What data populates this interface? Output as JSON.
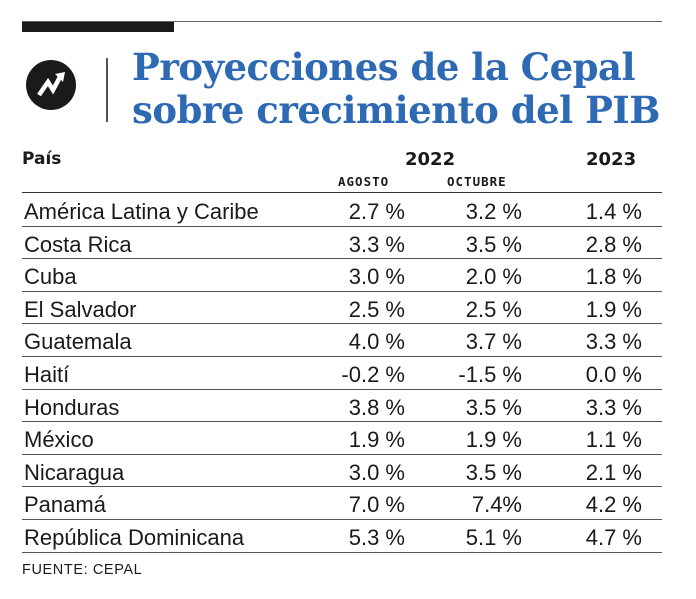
{
  "title": {
    "line1": "Proyecciones de la Cepal",
    "line2": "sobre crecimiento del PIB"
  },
  "colors": {
    "title": "#2e6ab3",
    "text": "#1a1a1a",
    "logo_bg": "#1a1a1a"
  },
  "icons": {
    "logo": "trend-arrow-icon"
  },
  "headers": {
    "country": "País",
    "year_2022": "2022",
    "year_2023": "2023",
    "agosto": "AGOSTO",
    "octubre": "OCTUBRE"
  },
  "chart_data": {
    "type": "table",
    "title": "Proyecciones de la Cepal sobre crecimiento del PIB",
    "columns": [
      "País",
      "2022 AGOSTO",
      "2022 OCTUBRE",
      "2023"
    ],
    "rows": [
      {
        "country": "América Latina y Caribe",
        "agosto": "2.7 %",
        "octubre": "3.2 %",
        "y2023": "1.4 %"
      },
      {
        "country": "Costa Rica",
        "agosto": "3.3 %",
        "octubre": "3.5 %",
        "y2023": "2.8 %"
      },
      {
        "country": "Cuba",
        "agosto": "3.0 %",
        "octubre": "2.0 %",
        "y2023": "1.8 %"
      },
      {
        "country": "El Salvador",
        "agosto": "2.5 %",
        "octubre": "2.5 %",
        "y2023": "1.9 %"
      },
      {
        "country": "Guatemala",
        "agosto": "4.0 %",
        "octubre": "3.7 %",
        "y2023": "3.3 %"
      },
      {
        "country": "Haití",
        "agosto": "-0.2 %",
        "octubre": "-1.5 %",
        "y2023": "0.0 %"
      },
      {
        "country": "Honduras",
        "agosto": "3.8 %",
        "octubre": "3.5 %",
        "y2023": "3.3 %"
      },
      {
        "country": "México",
        "agosto": "1.9 %",
        "octubre": "1.9 %",
        "y2023": "1.1 %"
      },
      {
        "country": "Nicaragua",
        "agosto": "3.0 %",
        "octubre": "3.5 %",
        "y2023": "2.1 %"
      },
      {
        "country": "Panamá",
        "agosto": "7.0 %",
        "octubre": "7.4%",
        "y2023": "4.2 %"
      },
      {
        "country": "República Dominicana",
        "agosto": "5.3 %",
        "octubre": "5.1 %",
        "y2023": "4.7 %"
      }
    ]
  },
  "source": "FUENTE: CEPAL"
}
